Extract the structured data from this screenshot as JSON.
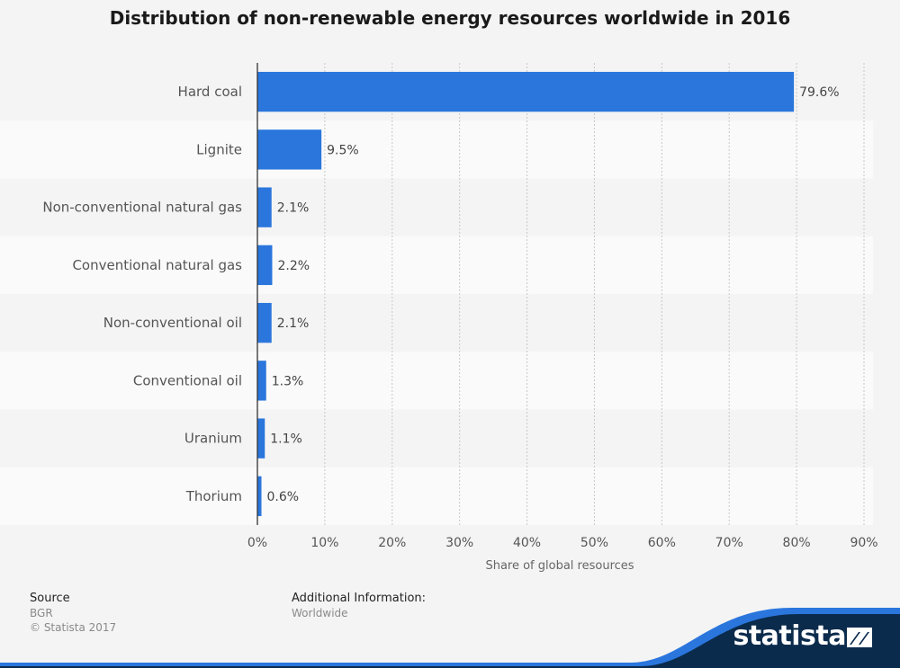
{
  "chart_data": {
    "type": "bar",
    "orientation": "horizontal",
    "title": "Distribution of non-renewable energy resources worldwide in 2016",
    "xlabel": "Share of global resources",
    "ylabel": "",
    "xlim": [
      0,
      90
    ],
    "x_ticks": [
      0,
      10,
      20,
      30,
      40,
      50,
      60,
      70,
      80,
      90
    ],
    "x_tick_labels": [
      "0%",
      "10%",
      "20%",
      "30%",
      "40%",
      "50%",
      "60%",
      "70%",
      "80%",
      "90%"
    ],
    "categories": [
      "Hard coal",
      "Lignite",
      "Non-conventional natural gas",
      "Conventional natural gas",
      "Non-conventional oil",
      "Conventional oil",
      "Uranium",
      "Thorium"
    ],
    "values": [
      79.6,
      9.5,
      2.1,
      2.2,
      2.1,
      1.3,
      1.1,
      0.6
    ],
    "value_labels": [
      "79.6%",
      "9.5%",
      "2.1%",
      "2.2%",
      "2.1%",
      "1.3%",
      "1.1%",
      "0.6%"
    ],
    "bar_color": "#2a76dd",
    "grid": "vertical dashed",
    "legend": "none"
  },
  "footer": {
    "source_heading": "Source",
    "source_name": "BGR",
    "copyright": "© Statista 2017",
    "additional_heading": "Additional Information:",
    "additional_text": "Worldwide"
  },
  "brand": {
    "name": "statista",
    "dark_color": "#0b2b4c",
    "accent_color": "#2a76dd"
  }
}
